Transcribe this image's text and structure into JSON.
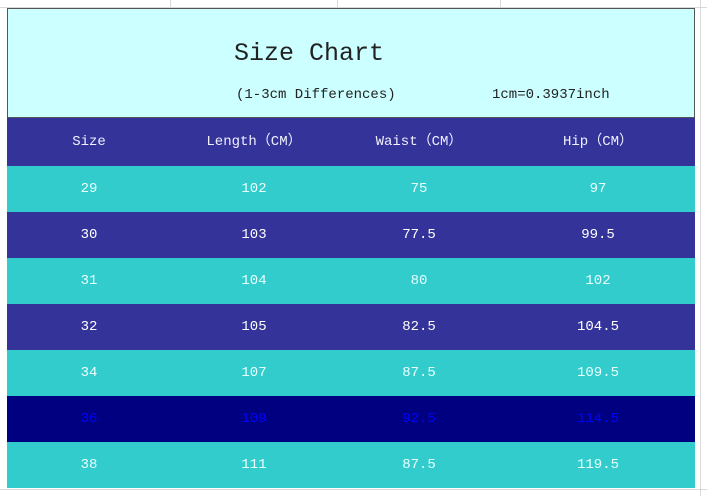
{
  "header": {
    "title": "Size Chart",
    "note": "(1-3cm Differences)",
    "conversion": "1cm=0.3937inch"
  },
  "table": {
    "columns": [
      "Size",
      "Length（CM）",
      "Waist（CM）",
      "Hip（CM）"
    ],
    "rows": [
      [
        "29",
        "102",
        "75",
        "97"
      ],
      [
        "30",
        "103",
        "77.5",
        "99.5"
      ],
      [
        "31",
        "104",
        "80",
        "102"
      ],
      [
        "32",
        "105",
        "82.5",
        "104.5"
      ],
      [
        "34",
        "107",
        "87.5",
        "109.5"
      ],
      [
        "36",
        "109",
        "92.5",
        "114.5"
      ],
      [
        "38",
        "111",
        "87.5",
        "119.5"
      ]
    ]
  }
}
